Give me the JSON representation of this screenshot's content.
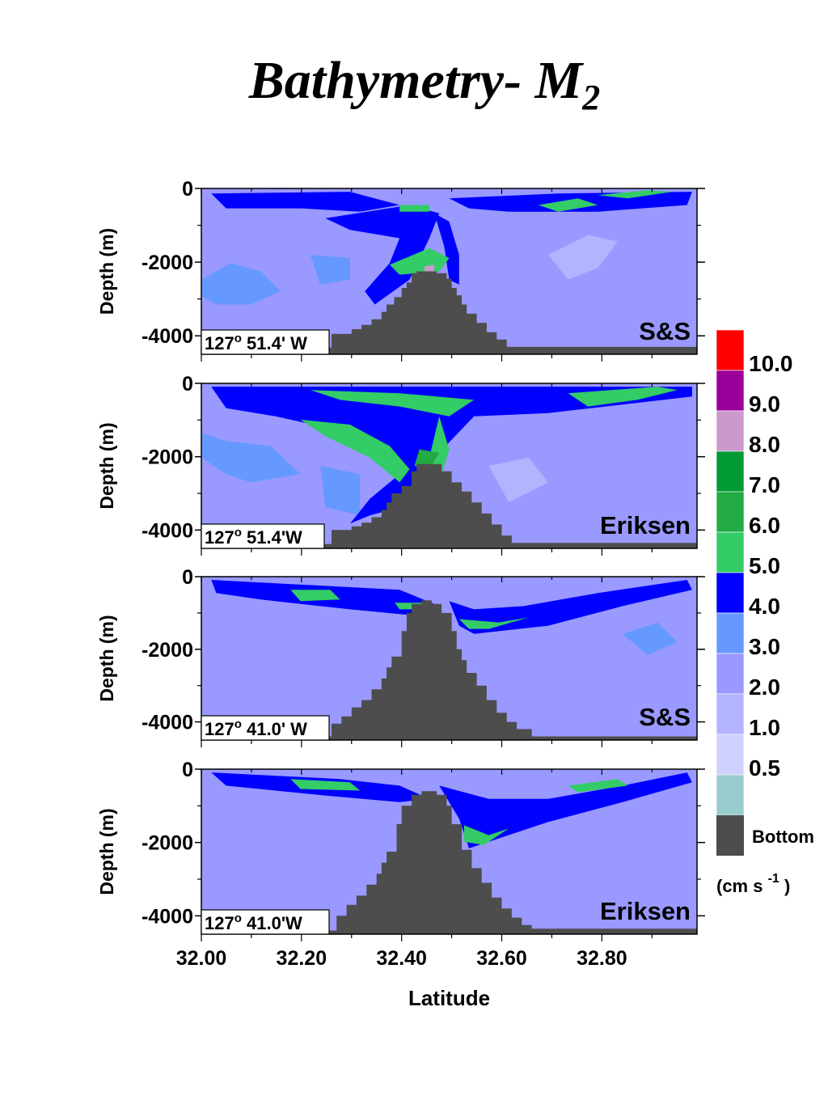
{
  "title": {
    "main": "Bathymetry- M",
    "sub": "2"
  },
  "chart_data": {
    "type": "contour",
    "xlabel": "Latitude",
    "ylabel": "Depth (m)",
    "xlim": [
      32.0,
      32.99
    ],
    "ylim": [
      -4500,
      0
    ],
    "x_ticks": [
      "32.00",
      "32.20",
      "32.40",
      "32.60",
      "32.80"
    ],
    "y_ticks": [
      "0",
      "-2000",
      "-4000"
    ],
    "panels": [
      {
        "location": "127° 51.4' W",
        "loc_deg": "127",
        "loc_rest": " 51.4' W",
        "model": "S&S",
        "bathymetry": [
          [
            32.0,
            -4320
          ],
          [
            32.25,
            -4320
          ],
          [
            32.26,
            -3950
          ],
          [
            32.29,
            -3950
          ],
          [
            32.3,
            -3820
          ],
          [
            32.32,
            -3700
          ],
          [
            32.34,
            -3550
          ],
          [
            32.36,
            -3350
          ],
          [
            32.37,
            -3150
          ],
          [
            32.385,
            -2950
          ],
          [
            32.4,
            -2700
          ],
          [
            32.41,
            -2550
          ],
          [
            32.42,
            -2300
          ],
          [
            32.43,
            -2250
          ],
          [
            32.45,
            -2250
          ],
          [
            32.47,
            -2300
          ],
          [
            32.49,
            -2450
          ],
          [
            32.5,
            -2700
          ],
          [
            32.51,
            -2900
          ],
          [
            32.52,
            -3150
          ],
          [
            32.53,
            -3400
          ],
          [
            32.55,
            -3650
          ],
          [
            32.57,
            -3900
          ],
          [
            32.59,
            -4100
          ],
          [
            32.61,
            -4300
          ],
          [
            32.99,
            -4300
          ]
        ]
      },
      {
        "location": "127° 51.4'W",
        "loc_deg": "127",
        "loc_rest": " 51.4'W",
        "model": "Eriksen",
        "bathymetry": [
          [
            32.0,
            -4380
          ],
          [
            32.24,
            -4380
          ],
          [
            32.26,
            -4000
          ],
          [
            32.3,
            -3900
          ],
          [
            32.32,
            -3800
          ],
          [
            32.34,
            -3650
          ],
          [
            32.36,
            -3450
          ],
          [
            32.37,
            -3250
          ],
          [
            32.38,
            -3000
          ],
          [
            32.4,
            -2800
          ],
          [
            32.42,
            -2400
          ],
          [
            32.43,
            -2200
          ],
          [
            32.46,
            -2200
          ],
          [
            32.48,
            -2400
          ],
          [
            32.5,
            -2700
          ],
          [
            32.52,
            -2950
          ],
          [
            32.54,
            -3250
          ],
          [
            32.56,
            -3550
          ],
          [
            32.58,
            -3850
          ],
          [
            32.6,
            -4150
          ],
          [
            32.62,
            -4350
          ],
          [
            32.99,
            -4350
          ]
        ]
      },
      {
        "location": "127° 41.0' W",
        "loc_deg": "127",
        "loc_rest": " 41.0' W",
        "model": "S&S",
        "bathymetry": [
          [
            32.0,
            -4400
          ],
          [
            32.25,
            -4400
          ],
          [
            32.26,
            -4050
          ],
          [
            32.28,
            -3850
          ],
          [
            32.3,
            -3600
          ],
          [
            32.32,
            -3400
          ],
          [
            32.34,
            -3100
          ],
          [
            32.36,
            -2800
          ],
          [
            32.37,
            -2500
          ],
          [
            32.38,
            -2200
          ],
          [
            32.4,
            -1500
          ],
          [
            32.41,
            -1000
          ],
          [
            32.42,
            -750
          ],
          [
            32.44,
            -650
          ],
          [
            32.46,
            -750
          ],
          [
            32.48,
            -1000
          ],
          [
            32.5,
            -1500
          ],
          [
            32.51,
            -2000
          ],
          [
            32.52,
            -2300
          ],
          [
            32.53,
            -2650
          ],
          [
            32.55,
            -3000
          ],
          [
            32.57,
            -3400
          ],
          [
            32.59,
            -3750
          ],
          [
            32.61,
            -4000
          ],
          [
            32.63,
            -4200
          ],
          [
            32.66,
            -4400
          ],
          [
            32.99,
            -4400
          ]
        ]
      },
      {
        "location": "127° 41.0'W",
        "loc_deg": "127",
        "loc_rest": " 41.0'W",
        "model": "Eriksen",
        "bathymetry": [
          [
            32.0,
            -4400
          ],
          [
            32.25,
            -4400
          ],
          [
            32.27,
            -4000
          ],
          [
            32.29,
            -3700
          ],
          [
            32.31,
            -3450
          ],
          [
            32.33,
            -3150
          ],
          [
            32.35,
            -2850
          ],
          [
            32.36,
            -2550
          ],
          [
            32.37,
            -2250
          ],
          [
            32.39,
            -1500
          ],
          [
            32.4,
            -1000
          ],
          [
            32.42,
            -700
          ],
          [
            32.44,
            -600
          ],
          [
            32.47,
            -700
          ],
          [
            32.49,
            -1000
          ],
          [
            32.5,
            -1500
          ],
          [
            32.52,
            -2200
          ],
          [
            32.54,
            -2700
          ],
          [
            32.56,
            -3100
          ],
          [
            32.58,
            -3500
          ],
          [
            32.6,
            -3800
          ],
          [
            32.62,
            -4050
          ],
          [
            32.64,
            -4250
          ],
          [
            32.66,
            -4350
          ],
          [
            32.99,
            -4350
          ]
        ]
      }
    ],
    "colorbar": {
      "unit_text": "(cm s",
      "unit_exp": "-1",
      "unit_close": " )",
      "boundary_labels": [
        "10.0",
        "9.0",
        "8.0",
        "7.0",
        "6.0",
        "5.0",
        "4.0",
        "3.0",
        "2.0",
        "1.0",
        "0.5"
      ],
      "bottom_label": "Bottom",
      "colors": [
        "#ff0000",
        "#990099",
        "#cc99cc",
        "#009933",
        "#22aa44",
        "#33cc66",
        "#0000ff",
        "#6699ff",
        "#9999ff",
        "#b3b3ff",
        "#d0d0ff",
        "#99cccc",
        "#4d4d4d"
      ]
    }
  }
}
